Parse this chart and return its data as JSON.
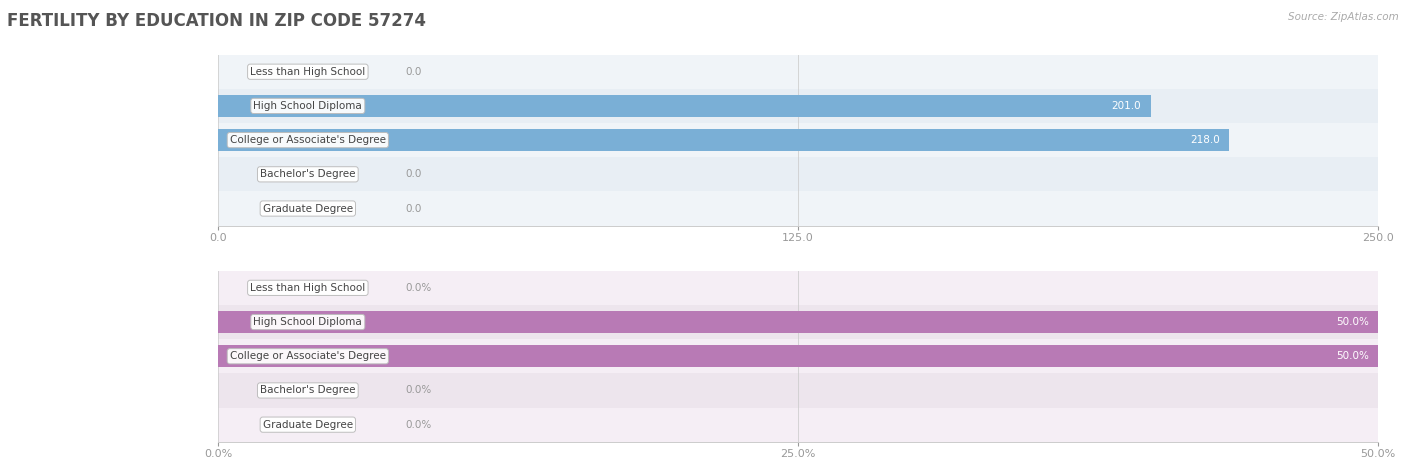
{
  "title": "FERTILITY BY EDUCATION IN ZIP CODE 57274",
  "source": "Source: ZipAtlas.com",
  "categories": [
    "Less than High School",
    "High School Diploma",
    "College or Associate's Degree",
    "Bachelor's Degree",
    "Graduate Degree"
  ],
  "values_abs": [
    0.0,
    201.0,
    218.0,
    0.0,
    0.0
  ],
  "values_pct": [
    0.0,
    50.0,
    50.0,
    0.0,
    0.0
  ],
  "xlim_abs": [
    0,
    250.0
  ],
  "xlim_pct": [
    0,
    50.0
  ],
  "xticks_abs": [
    0.0,
    125.0,
    250.0
  ],
  "xticks_pct": [
    0.0,
    25.0,
    50.0
  ],
  "bar_color_abs": "#7aafd6",
  "bar_color_pct": "#b87ab5",
  "label_bg": "#ffffff",
  "label_border": "#cccccc",
  "row_bg_even": "#f0f4f8",
  "row_bg_odd": "#e8eef4",
  "row_bg_even_pct": "#f5eef5",
  "row_bg_odd_pct": "#ede5ed",
  "grid_color": "#cccccc",
  "title_color": "#555555",
  "tick_color": "#999999",
  "value_label_color_inside": "#ffffff",
  "value_label_color_outside": "#999999",
  "title_fontsize": 12,
  "label_fontsize": 7.5,
  "value_fontsize": 7.5,
  "tick_fontsize": 8,
  "source_fontsize": 7.5,
  "bar_height": 0.65
}
